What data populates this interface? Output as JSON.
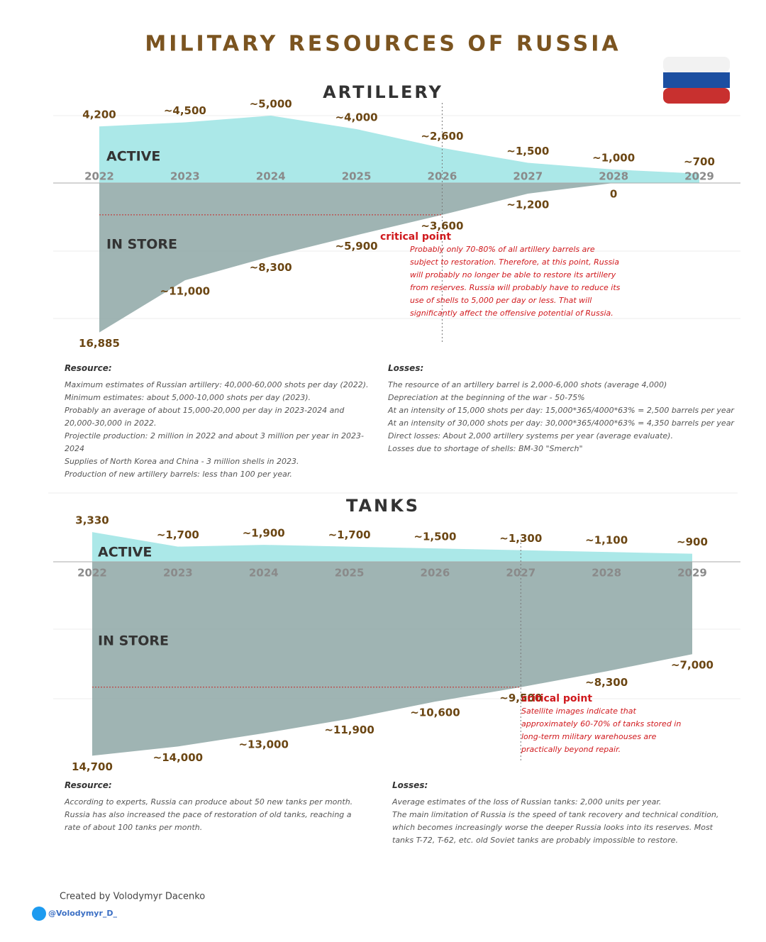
{
  "title": "MILITARY RESOURCES OF RUSSIA",
  "credit": "Created by Volodymyr Dacenko",
  "handle": "@Volodymyr_D_",
  "chart_data": [
    {
      "type": "area",
      "title": "ARTILLERY",
      "x": [
        2022,
        2023,
        2024,
        2025,
        2026,
        2027,
        2028,
        2029
      ],
      "ylim": [
        0,
        5000
      ],
      "y2lim": [
        0,
        17000
      ],
      "series": [
        {
          "name": "ACTIVE",
          "color": "#8fe0e0",
          "values": [
            4200,
            4500,
            5000,
            4000,
            2600,
            1500,
            1000,
            700
          ],
          "value_labels": [
            "4,200",
            "~4,500",
            "~5,000",
            "~4,000",
            "~2,600",
            "~1,500",
            "~1,000",
            "~700"
          ]
        },
        {
          "name": "IN STORE",
          "color": "#8ea7a6",
          "axis": "y2",
          "values": [
            16885,
            11000,
            8300,
            5900,
            3600,
            1200,
            0,
            null
          ],
          "value_labels": [
            "16,885",
            "~11,000",
            "~8,300",
            "~5,900",
            "~3,600",
            "~1,200",
            "0",
            null
          ]
        }
      ],
      "critical_x": 2026,
      "critical_level": 3600,
      "critical_label": "critical point",
      "critical_text": "Probably only 70-80% of all artillery barrels are subject to restoration. Therefore, at this point, Russia will probably no longer be able to restore its artillery from reserves. Russia will probably have to reduce its use of shells to 5,000 per day or less. That will significantly affect the offensive potential of Russia.",
      "notes": [
        {
          "heading": "Resource:",
          "lines": [
            "Maximum estimates of Russian artillery: 40,000-60,000 shots per day (2022).",
            "Minimum estimates: about 5,000-10,000 shots per day (2023).",
            "Probably an average of about 15,000-20,000 per day in 2023-2024 and 20,000-30,000 in 2022.",
            "Projectile production: 2 million in 2022 and about 3 million per year in 2023-2024",
            "Supplies of North Korea and China - 3 million shells in 2023.",
            "Production of new artillery barrels: less than 100 per year."
          ]
        },
        {
          "heading": "Losses:",
          "lines": [
            "The resource of an artillery barrel is 2,000-6,000 shots (average 4,000)",
            "Depreciation at the beginning of the war - 50-75%",
            "At an intensity of 15,000 shots per day: 15,000*365/4000*63% = 2,500 barrels per year",
            "At an intensity of 30,000 shots per day:  30,000*365/4000*63% = 4,350 barrels per year",
            "Direct losses: About 2,000 artillery systems per year (average evaluate).",
            "Losses due to shortage of shells: BM-30 \"Smerch\""
          ]
        }
      ]
    },
    {
      "type": "area",
      "title": "TANKS",
      "x": [
        2022,
        2023,
        2024,
        2025,
        2026,
        2027,
        2028,
        2029
      ],
      "ylim": [
        0,
        3500
      ],
      "y2lim": [
        0,
        15000
      ],
      "series": [
        {
          "name": "ACTIVE",
          "color": "#8fe0e0",
          "values": [
            3330,
            1700,
            1900,
            1700,
            1500,
            1300,
            1100,
            900
          ],
          "value_labels": [
            "3,330",
            "~1,700",
            "~1,900",
            "~1,700",
            "~1,500",
            "~1,300",
            "~1,100",
            "~900"
          ]
        },
        {
          "name": "IN STORE",
          "color": "#8ea7a6",
          "axis": "y2",
          "values": [
            14700,
            14000,
            13000,
            11900,
            10600,
            9500,
            8300,
            7000
          ],
          "value_labels": [
            "14,700",
            "~14,000",
            "~13,000",
            "~11,900",
            "~10,600",
            "~9,500",
            "~8,300",
            "~7,000"
          ]
        }
      ],
      "critical_x": 2027,
      "critical_level": 9500,
      "critical_label": "critical point",
      "critical_text": "Satellite images indicate that approximately 60-70% of tanks stored in long-term military warehouses are practically beyond repair.",
      "notes": [
        {
          "heading": "Resource:",
          "lines": [
            "According to experts, Russia can produce about 50 new tanks per month. Russia has also increased the pace of restoration of old tanks, reaching a rate of about 100 tanks per month."
          ]
        },
        {
          "heading": "Losses:",
          "lines": [
            "Average estimates of the loss of Russian tanks: 2,000 units per year.",
            "The main limitation of Russia is the speed of tank recovery and technical condition, which becomes increasingly worse the deeper Russia looks into its reserves. Most tanks T-72, T-62, etc. old Soviet tanks are probably impossible to restore."
          ]
        }
      ]
    }
  ]
}
